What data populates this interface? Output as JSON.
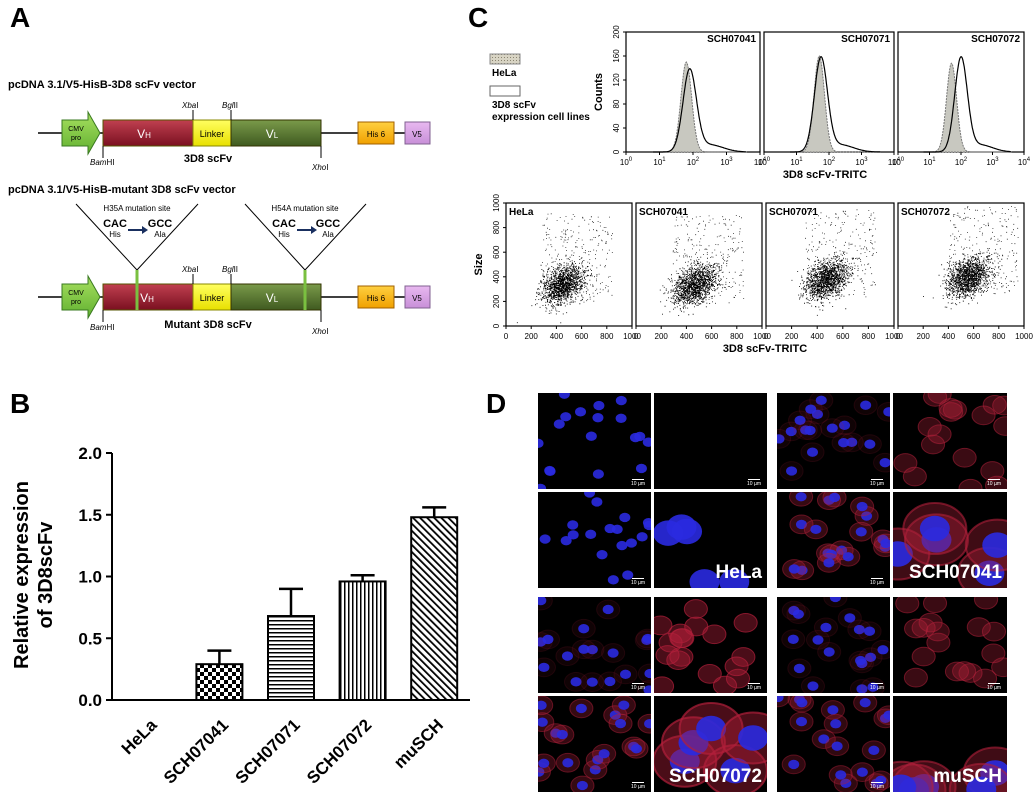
{
  "panels": {
    "a": "A",
    "b": "B",
    "c": "C",
    "d": "D"
  },
  "panel_a": {
    "vector1_title": "pcDNA 3.1/V5-HisB-3D8 scFv vector",
    "vector2_title": "pcDNA 3.1/V5-HisB-mutant 3D8 scFv vector",
    "promoter_line1": "CMV",
    "promoter_line2": "pro",
    "vh_main": "V",
    "vh_sub": "H",
    "vl_main": "V",
    "vl_sub": "L",
    "linker": "Linker",
    "his6": "His 6",
    "v5": "V5",
    "site_bamhi_italic": "Bam",
    "site_bamhi_rest": "HI",
    "site_xbai_italic": "Xba",
    "site_xbai_rest": "I",
    "site_bglii_italic": "Bgl",
    "site_bglii_rest": "II",
    "site_xhoi_italic": "Xho",
    "site_xhoi_rest": "I",
    "construct1_label": "3D8 scFv",
    "construct2_label": "Mutant 3D8 scFv",
    "mutation1_title": "H35A mutation site",
    "mutation2_title": "H54A mutation site",
    "codon_from": "CAC",
    "codon_to": "GCC",
    "aa_from": "His",
    "aa_to": "Ala"
  },
  "panel_b": {
    "chart_data": {
      "type": "bar",
      "categories": [
        "HeLa",
        "SCH07041",
        "SCH07071",
        "SCH07072",
        "muSCH"
      ],
      "values": [
        0,
        0.29,
        0.68,
        0.96,
        1.48
      ],
      "errors": [
        0,
        0.11,
        0.22,
        0.05,
        0.08
      ],
      "ylabel_line1": "Relative  expression",
      "ylabel_line2": "of 3D8scFv",
      "ylim": [
        0,
        2.0
      ],
      "yticks": [
        "0.0",
        "0.5",
        "1.0",
        "1.5",
        "2.0"
      ],
      "patterns": [
        "none",
        "checker",
        "horizontal",
        "vertical",
        "diagonal"
      ]
    }
  },
  "panel_c": {
    "legend_hela": "HeLa",
    "legend_lines_1": "3D8 scFv",
    "legend_lines_2": "expression cell lines",
    "hist_titles": [
      "SCH07041",
      "SCH07071",
      "SCH07072"
    ],
    "hist_ylabel": "Counts",
    "hist_yticks": [
      "0",
      "40",
      "80",
      "120",
      "160",
      "200"
    ],
    "hist_xticks_base": "10",
    "hist_xticks_exp": [
      "0",
      "1",
      "2",
      "3",
      "4"
    ],
    "hist_xlabel": "3D8 scFv-TRITC",
    "hist_peaks_log": [
      {
        "hela": 1.8,
        "expr": 1.9,
        "hela_h": 150,
        "expr_h": 135
      },
      {
        "hela": 1.7,
        "expr": 1.75,
        "hela_h": 160,
        "expr_h": 155
      },
      {
        "hela": 1.7,
        "expr": 2.0,
        "hela_h": 148,
        "expr_h": 155
      }
    ],
    "scatter_titles": [
      "HeLa",
      "SCH07041",
      "SCH07071",
      "SCH07072"
    ],
    "scatter_ylabel": "Size",
    "scatter_yticks": [
      "0",
      "200",
      "400",
      "600",
      "800",
      "1000"
    ],
    "scatter_xticks": [
      "0",
      "200",
      "400",
      "600",
      "800",
      "1000"
    ],
    "scatter_xlabel": "3D8 scFv-TRITC",
    "scatter_centers": [
      {
        "x": 450,
        "y": 340
      },
      {
        "x": 460,
        "y": 330
      },
      {
        "x": 470,
        "y": 380
      },
      {
        "x": 560,
        "y": 400
      }
    ]
  },
  "panel_d": {
    "scale_bar": "10 µm",
    "labels": [
      "HeLa",
      "SCH07041",
      "SCH07072",
      "muSCH"
    ],
    "colors": {
      "nucleus": "#2a2ae0",
      "cytoplasm": "#b0203a",
      "background": "#000000"
    }
  }
}
